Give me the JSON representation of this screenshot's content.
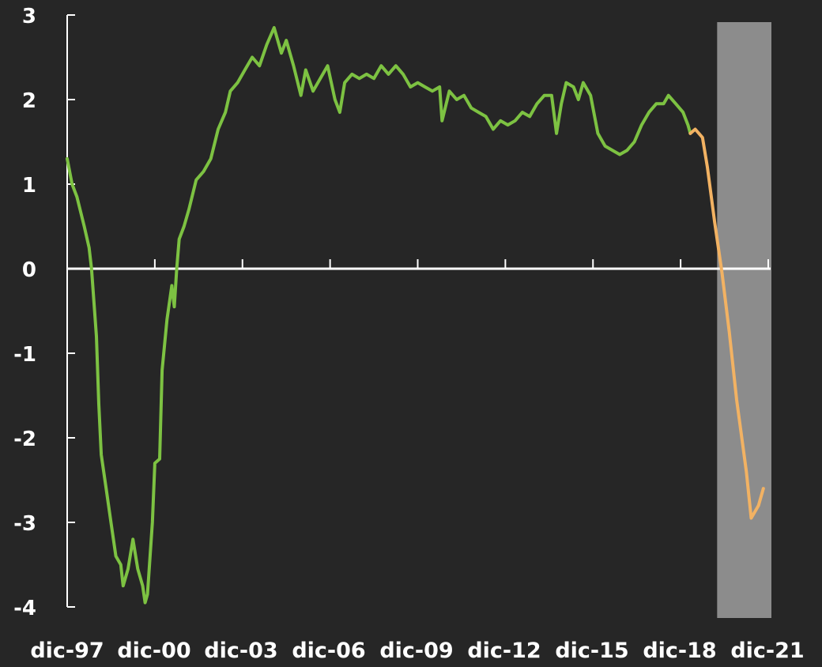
{
  "colors": {
    "background": "#262626",
    "axis": "#ffffff",
    "historical": "#7dc242",
    "forecast": "#f2b263",
    "forecast_band": "#8c8c8c"
  },
  "chart_data": {
    "type": "line",
    "title": "",
    "xlabel": "",
    "ylabel": "",
    "xlim": [
      "1997-12",
      "2021-12"
    ],
    "ylim": [
      -4,
      3
    ],
    "yticks": [
      3,
      2,
      1,
      0,
      -1,
      -2,
      -3,
      -4
    ],
    "ytick_labels": [
      "3",
      "2",
      "1",
      "0",
      "-1",
      "-2",
      "-3",
      "-4"
    ],
    "xtick_labels": [
      "dic-97",
      "dic-00",
      "dic-03",
      "dic-06",
      "dic-09",
      "dic-12",
      "dic-15",
      "dic-18",
      "dic-21"
    ],
    "grid": false,
    "legend": "none",
    "shaded_region": {
      "from": "2020-03",
      "to": "2021-12"
    },
    "series": [
      {
        "color": "#7dc242",
        "points": [
          [
            "1997-12",
            1.3
          ],
          [
            "1998-02",
            1.0
          ],
          [
            "1998-04",
            0.85
          ],
          [
            "1998-07",
            0.5
          ],
          [
            "1998-09",
            0.25
          ],
          [
            "1998-10",
            0.0
          ],
          [
            "1998-12",
            -0.8
          ],
          [
            "1999-01",
            -1.6
          ],
          [
            "1999-02",
            -2.2
          ],
          [
            "1999-04",
            -2.6
          ],
          [
            "1999-06",
            -3.0
          ],
          [
            "1999-08",
            -3.4
          ],
          [
            "1999-10",
            -3.5
          ],
          [
            "1999-11",
            -3.75
          ],
          [
            "2000-01",
            -3.55
          ],
          [
            "2000-03",
            -3.2
          ],
          [
            "2000-05",
            -3.55
          ],
          [
            "2000-07",
            -3.75
          ],
          [
            "2000-08",
            -3.95
          ],
          [
            "2000-09",
            -3.85
          ],
          [
            "2000-11",
            -3.0
          ],
          [
            "2000-12",
            -2.3
          ],
          [
            "2001-02",
            -2.25
          ],
          [
            "2001-03",
            -1.2
          ],
          [
            "2001-05",
            -0.6
          ],
          [
            "2001-07",
            -0.2
          ],
          [
            "2001-08",
            -0.45
          ],
          [
            "2001-09",
            0.0
          ],
          [
            "2001-10",
            0.35
          ],
          [
            "2001-12",
            0.5
          ],
          [
            "2002-02",
            0.7
          ],
          [
            "2002-05",
            1.05
          ],
          [
            "2002-08",
            1.15
          ],
          [
            "2002-11",
            1.3
          ],
          [
            "2003-02",
            1.65
          ],
          [
            "2003-05",
            1.85
          ],
          [
            "2003-07",
            2.1
          ],
          [
            "2003-10",
            2.2
          ],
          [
            "2004-01",
            2.35
          ],
          [
            "2004-04",
            2.5
          ],
          [
            "2004-07",
            2.4
          ],
          [
            "2004-10",
            2.65
          ],
          [
            "2005-01",
            2.85
          ],
          [
            "2005-04",
            2.55
          ],
          [
            "2005-06",
            2.7
          ],
          [
            "2005-09",
            2.4
          ],
          [
            "2005-12",
            2.05
          ],
          [
            "2006-02",
            2.35
          ],
          [
            "2006-05",
            2.1
          ],
          [
            "2006-08",
            2.25
          ],
          [
            "2006-11",
            2.4
          ],
          [
            "2007-02",
            2.0
          ],
          [
            "2007-04",
            1.85
          ],
          [
            "2007-06",
            2.2
          ],
          [
            "2007-09",
            2.3
          ],
          [
            "2007-12",
            2.25
          ],
          [
            "2008-03",
            2.3
          ],
          [
            "2008-06",
            2.25
          ],
          [
            "2008-09",
            2.4
          ],
          [
            "2008-12",
            2.3
          ],
          [
            "2009-03",
            2.4
          ],
          [
            "2009-06",
            2.3
          ],
          [
            "2009-09",
            2.15
          ],
          [
            "2009-12",
            2.2
          ],
          [
            "2010-03",
            2.15
          ],
          [
            "2010-06",
            2.1
          ],
          [
            "2010-09",
            2.15
          ],
          [
            "2010-10",
            1.75
          ],
          [
            "2011-01",
            2.1
          ],
          [
            "2011-04",
            2.0
          ],
          [
            "2011-07",
            2.05
          ],
          [
            "2011-10",
            1.9
          ],
          [
            "2012-01",
            1.85
          ],
          [
            "2012-04",
            1.8
          ],
          [
            "2012-07",
            1.65
          ],
          [
            "2012-10",
            1.75
          ],
          [
            "2013-01",
            1.7
          ],
          [
            "2013-04",
            1.75
          ],
          [
            "2013-07",
            1.85
          ],
          [
            "2013-10",
            1.8
          ],
          [
            "2014-01",
            1.95
          ],
          [
            "2014-04",
            2.05
          ],
          [
            "2014-07",
            2.05
          ],
          [
            "2014-09",
            1.6
          ],
          [
            "2014-11",
            1.95
          ],
          [
            "2015-01",
            2.2
          ],
          [
            "2015-04",
            2.15
          ],
          [
            "2015-06",
            2.0
          ],
          [
            "2015-08",
            2.2
          ],
          [
            "2015-11",
            2.05
          ],
          [
            "2016-02",
            1.6
          ],
          [
            "2016-05",
            1.45
          ],
          [
            "2016-08",
            1.4
          ],
          [
            "2016-11",
            1.35
          ],
          [
            "2017-02",
            1.4
          ],
          [
            "2017-05",
            1.5
          ],
          [
            "2017-08",
            1.7
          ],
          [
            "2017-11",
            1.85
          ],
          [
            "2018-02",
            1.95
          ],
          [
            "2018-05",
            1.95
          ],
          [
            "2018-07",
            2.05
          ],
          [
            "2018-10",
            1.95
          ],
          [
            "2019-01",
            1.85
          ],
          [
            "2019-03",
            1.7
          ],
          [
            "2019-04",
            1.6
          ]
        ]
      },
      {
        "color": "#f2b263",
        "points": [
          [
            "2019-04",
            1.6
          ],
          [
            "2019-06",
            1.65
          ],
          [
            "2019-09",
            1.55
          ],
          [
            "2019-11",
            1.2
          ],
          [
            "2020-02",
            0.55
          ],
          [
            "2020-05",
            -0.05
          ],
          [
            "2020-08",
            -0.75
          ],
          [
            "2020-11",
            -1.55
          ],
          [
            "2021-03",
            -2.4
          ],
          [
            "2021-05",
            -2.95
          ],
          [
            "2021-08",
            -2.8
          ],
          [
            "2021-10",
            -2.6
          ]
        ]
      }
    ]
  }
}
